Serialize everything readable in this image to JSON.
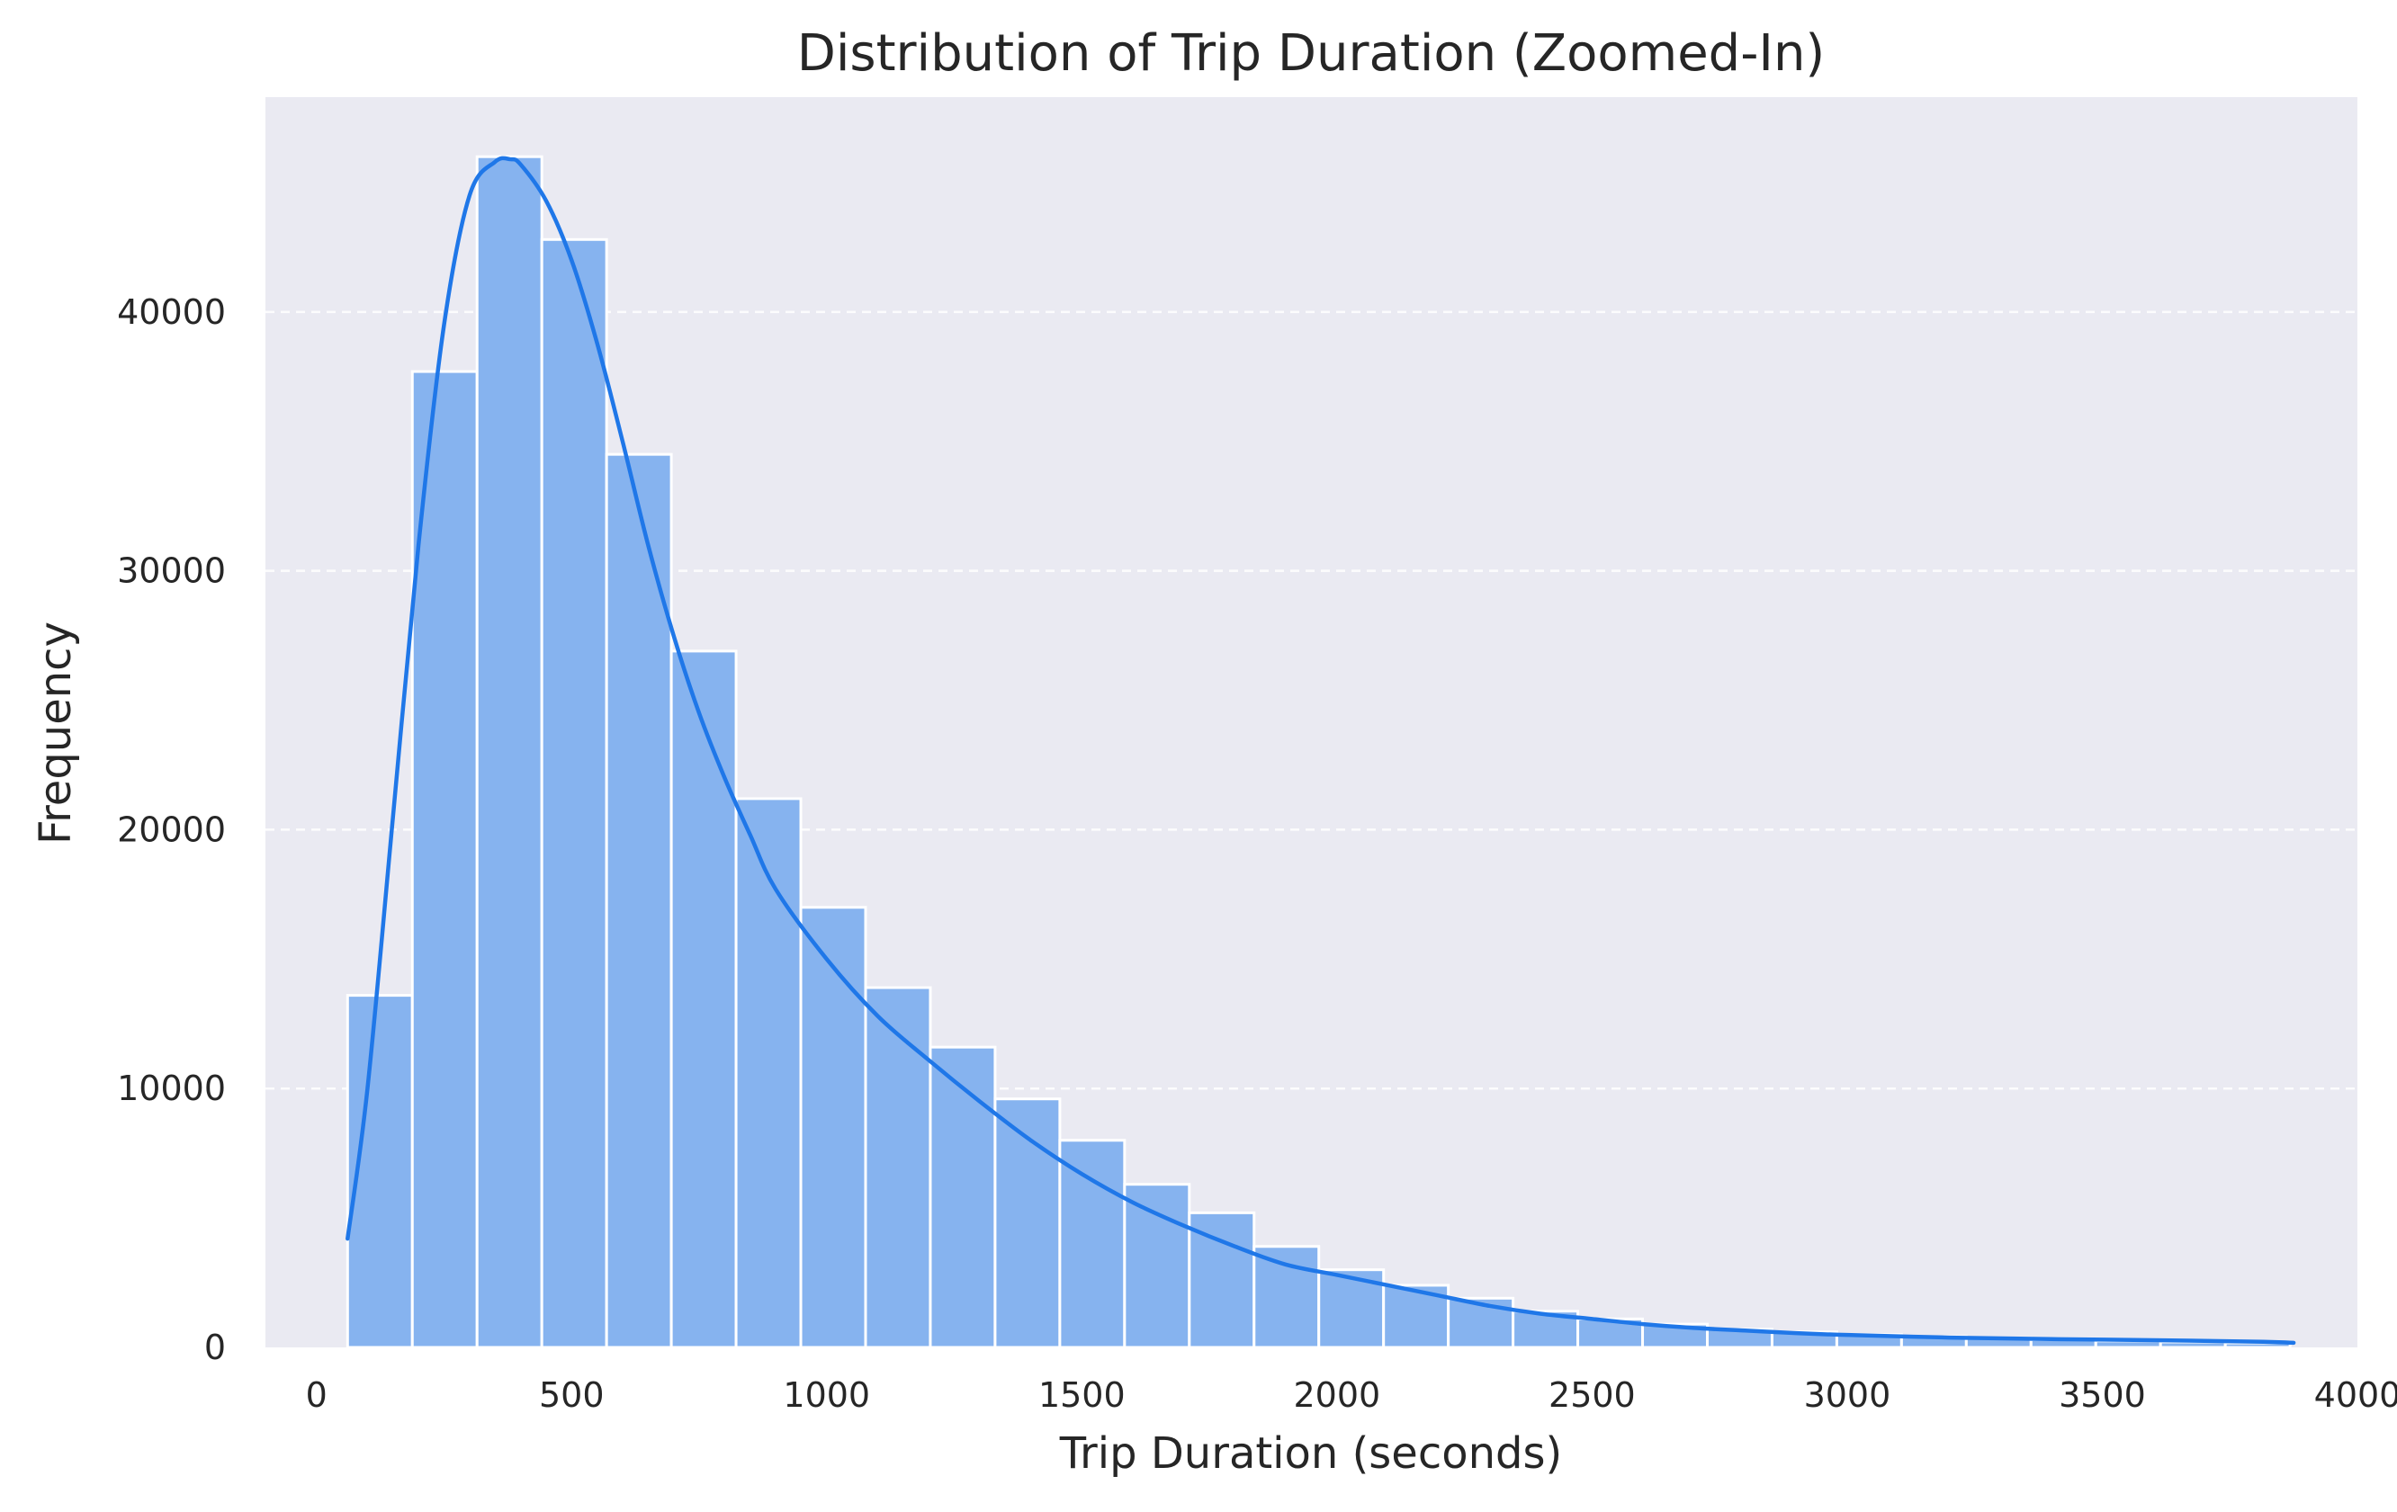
{
  "chart_data": {
    "type": "bar",
    "subtype": "histogram-with-kde",
    "title": "Distribution of Trip Duration (Zoomed-In)",
    "xlabel": "Trip Duration (seconds)",
    "ylabel": "Frequency",
    "xlim": [
      -100,
      4000
    ],
    "ylim": [
      0,
      48300
    ],
    "xticks": [
      0,
      500,
      1000,
      1500,
      2000,
      2500,
      3000,
      3500,
      4000
    ],
    "yticks": [
      0,
      10000,
      20000,
      30000,
      40000
    ],
    "grid": "horizontal dashed",
    "legend": "none",
    "colors": {
      "background": "#eaeaf2",
      "bar_fill": "#86b3ef",
      "bar_edge": "#ffffff",
      "kde_line": "#1f77e8",
      "grid": "#ffffff",
      "text": "#262626"
    },
    "bins": {
      "start": 61,
      "width": 126.9,
      "counts": [
        13600,
        37700,
        46000,
        42800,
        34500,
        26900,
        21200,
        17000,
        13900,
        11600,
        9600,
        8000,
        6300,
        5200,
        3900,
        3000,
        2400,
        1900,
        1400,
        1100,
        900,
        700,
        600,
        500,
        420,
        360,
        300,
        250,
        210,
        170
      ]
    },
    "kde": {
      "x": [
        61,
        100,
        150,
        200,
        250,
        300,
        350,
        380,
        400,
        450,
        500,
        550,
        600,
        650,
        700,
        750,
        800,
        850,
        900,
        1000,
        1100,
        1200,
        1300,
        1400,
        1500,
        1600,
        1700,
        1800,
        1900,
        2000,
        2100,
        2200,
        2300,
        2400,
        2500,
        2600,
        2700,
        2800,
        2900,
        3000,
        3200,
        3400,
        3600,
        3800,
        3875
      ],
      "y": [
        4200,
        10000,
        20500,
        31000,
        39500,
        44500,
        45800,
        45900,
        45700,
        44300,
        42000,
        38800,
        35000,
        31000,
        27500,
        24500,
        22000,
        19800,
        17700,
        15000,
        12800,
        11100,
        9500,
        8000,
        6700,
        5600,
        4700,
        3900,
        3200,
        2800,
        2400,
        2000,
        1600,
        1300,
        1100,
        900,
        750,
        650,
        550,
        480,
        380,
        320,
        280,
        220,
        180
      ]
    }
  }
}
